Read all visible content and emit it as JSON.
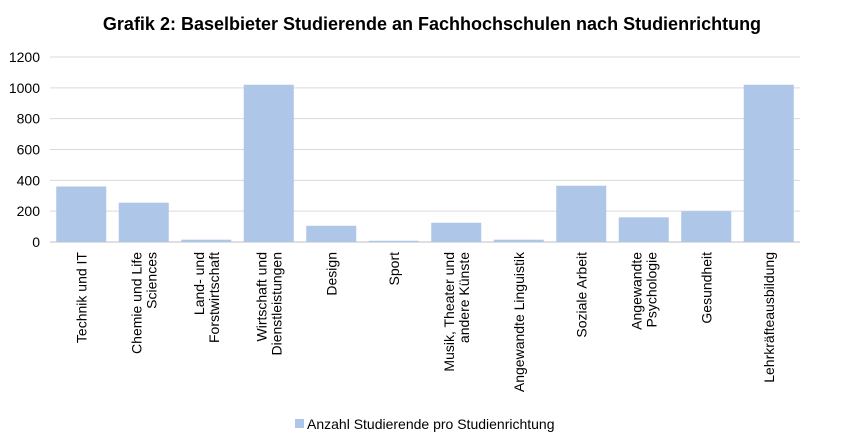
{
  "chart_data": {
    "type": "bar",
    "title": "Grafik 2: Baselbieter Studierende an Fachhochschulen nach Studienrichtung",
    "xlabel": "",
    "ylabel": "",
    "ylim": [
      0,
      1200
    ],
    "yticks": [
      0,
      200,
      400,
      600,
      800,
      1000,
      1200
    ],
    "grid": true,
    "legend_position": "bottom",
    "categories": [
      [
        "Technik und IT"
      ],
      [
        "Chemie und Life",
        "Sciences"
      ],
      [
        "Land- und",
        "Forstwirtschaft"
      ],
      [
        "Wirtschaft und",
        "Dienstleistungen"
      ],
      [
        "Design"
      ],
      [
        "Sport"
      ],
      [
        "Musik, Theater und",
        "andere Künste"
      ],
      [
        "Angewandte Linguistik"
      ],
      [
        "Soziale Arbeit"
      ],
      [
        "Angewandte",
        "Psychologie"
      ],
      [
        "Gesundheit"
      ],
      [
        "Lehrkräfteausbildung"
      ]
    ],
    "series": [
      {
        "name": "Anzahl Studierende pro Studienrichtung",
        "color": "#aec6e7",
        "values": [
          360,
          255,
          15,
          1020,
          105,
          8,
          125,
          15,
          365,
          160,
          200,
          1020
        ]
      }
    ]
  }
}
